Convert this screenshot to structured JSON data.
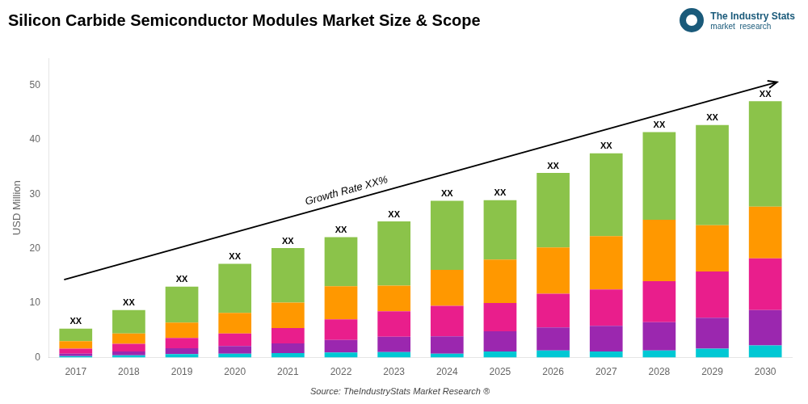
{
  "chart_data": {
    "type": "bar",
    "title": "Silicon Carbide Semiconductor Modules Market Size & Scope",
    "ylabel": "USD Million",
    "source": "Source: TheIndustryStats Market Research ®",
    "annotations": [
      "Growth Rate XX%"
    ],
    "bar_label": "XX",
    "logo_texts": [
      "The Industry Stats",
      "market  research"
    ],
    "logo_color": "#1a5a7a",
    "categories": [
      "2017",
      "2018",
      "2019",
      "2020",
      "2021",
      "2022",
      "2023",
      "2024",
      "2025",
      "2026",
      "2027",
      "2028",
      "2029",
      "2030"
    ],
    "series": [
      {
        "color": "#00c8d4",
        "values": [
          0.25,
          0.4,
          0.6,
          0.7,
          0.8,
          0.9,
          1.0,
          0.7,
          1.1,
          1.3,
          1.1,
          1.3,
          1.6,
          2.2
        ]
      },
      {
        "color": "#9b27af",
        "values": [
          0.45,
          0.7,
          1.1,
          1.4,
          1.8,
          2.3,
          2.8,
          3.2,
          3.7,
          4.2,
          4.7,
          5.2,
          5.7,
          6.5
        ]
      },
      {
        "color": "#e91e8c",
        "values": [
          0.9,
          1.4,
          1.9,
          2.3,
          2.8,
          3.8,
          4.7,
          5.6,
          5.2,
          6.2,
          6.7,
          7.5,
          8.5,
          9.5
        ]
      },
      {
        "color": "#ff9800",
        "values": [
          1.4,
          1.9,
          2.8,
          3.8,
          4.7,
          6.1,
          4.7,
          6.6,
          8.0,
          8.5,
          9.8,
          11.3,
          8.5,
          9.5
        ]
      },
      {
        "color": "#8bc34a",
        "values": [
          2.3,
          4.3,
          6.6,
          9.0,
          10.0,
          9.0,
          11.8,
          12.7,
          10.9,
          13.7,
          15.2,
          16.1,
          18.4,
          19.4
        ]
      }
    ],
    "ylim": [
      0,
      55
    ],
    "yticks": [
      0,
      10,
      20,
      30,
      40,
      50
    ],
    "stacked": true,
    "grid": false
  }
}
